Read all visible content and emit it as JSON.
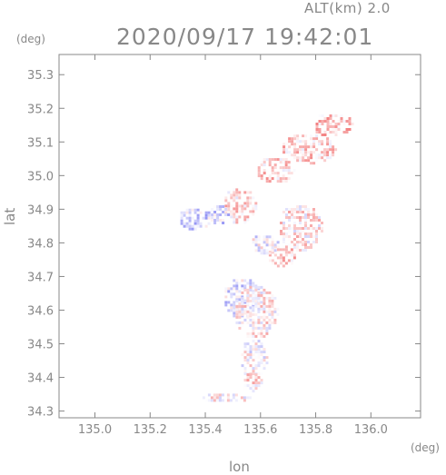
{
  "header": {
    "alt_label": "ALT(km) 2.0",
    "timestamp": "2020/09/17 19:42:01",
    "y_unit": "(deg)",
    "x_unit": "(deg)"
  },
  "chart_data": {
    "type": "heatmap",
    "title": "2020/09/17 19:42:01",
    "xlabel": "lon",
    "ylabel": "lat",
    "xlim": [
      134.87,
      136.18
    ],
    "ylim": [
      34.28,
      35.36
    ],
    "xticks": [
      {
        "value": 135.0,
        "label": "135.0"
      },
      {
        "value": 135.2,
        "label": "135.2"
      },
      {
        "value": 135.4,
        "label": "135.4"
      },
      {
        "value": 135.6,
        "label": "135.6"
      },
      {
        "value": 135.8,
        "label": "135.8"
      },
      {
        "value": 136.0,
        "label": "136.0"
      }
    ],
    "yticks": [
      {
        "value": 34.3,
        "label": "34.3"
      },
      {
        "value": 34.4,
        "label": "34.4"
      },
      {
        "value": 34.5,
        "label": "34.5"
      },
      {
        "value": 34.6,
        "label": "34.6"
      },
      {
        "value": 34.7,
        "label": "34.7"
      },
      {
        "value": 34.8,
        "label": "34.8"
      },
      {
        "value": 34.9,
        "label": "34.9"
      },
      {
        "value": 35.0,
        "label": "35.0"
      },
      {
        "value": 35.1,
        "label": "35.1"
      },
      {
        "value": 35.2,
        "label": "35.2"
      },
      {
        "value": 35.3,
        "label": "35.3"
      }
    ],
    "grid": false,
    "colors": {
      "positive": "#f06060",
      "negative": "#6e6ef0",
      "axis": "#888888"
    },
    "clusters": [
      {
        "lon": [
          135.67,
          135.87
        ],
        "lat": [
          35.04,
          35.13
        ],
        "v": 0.3
      },
      {
        "lon": [
          135.78,
          135.93
        ],
        "lat": [
          35.12,
          35.19
        ],
        "v": 0.35
      },
      {
        "lon": [
          135.58,
          135.72
        ],
        "lat": [
          34.98,
          35.06
        ],
        "v": 0.3
      },
      {
        "lon": [
          135.46,
          135.58
        ],
        "lat": [
          34.86,
          34.97
        ],
        "v": 0.25
      },
      {
        "lon": [
          135.3,
          135.42
        ],
        "lat": [
          34.84,
          34.91
        ],
        "v": -0.3
      },
      {
        "lon": [
          135.41,
          135.48
        ],
        "lat": [
          34.86,
          34.92
        ],
        "v": -0.3
      },
      {
        "lon": [
          135.66,
          135.82
        ],
        "lat": [
          34.78,
          34.92
        ],
        "v": 0.15
      },
      {
        "lon": [
          135.62,
          135.72
        ],
        "lat": [
          34.73,
          34.8
        ],
        "v": 0.3
      },
      {
        "lon": [
          135.56,
          135.66
        ],
        "lat": [
          34.77,
          34.83
        ],
        "v": -0.1
      },
      {
        "lon": [
          135.46,
          135.6
        ],
        "lat": [
          34.58,
          34.7
        ],
        "v": -0.2
      },
      {
        "lon": [
          135.5,
          135.66
        ],
        "lat": [
          34.52,
          34.68
        ],
        "v": 0.1
      },
      {
        "lon": [
          135.52,
          135.62
        ],
        "lat": [
          34.4,
          34.52
        ],
        "v": 0.0
      },
      {
        "lon": [
          135.53,
          135.6
        ],
        "lat": [
          34.36,
          34.42
        ],
        "v": 0.2
      },
      {
        "lon": [
          135.38,
          135.56
        ],
        "lat": [
          34.33,
          34.36
        ],
        "v": 0.1
      }
    ]
  }
}
